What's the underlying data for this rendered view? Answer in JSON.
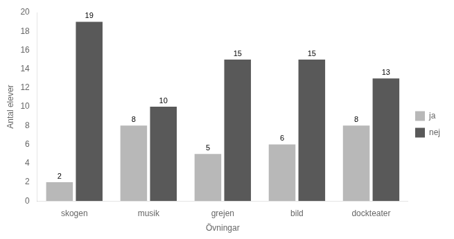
{
  "chart_data": {
    "type": "bar",
    "categories": [
      "skogen",
      "musik",
      "grejen",
      "bild",
      "dockteater"
    ],
    "series": [
      {
        "name": "ja",
        "color": "#b8b8b8",
        "values": [
          2,
          8,
          5,
          6,
          8
        ]
      },
      {
        "name": "nej",
        "color": "#595959",
        "values": [
          19,
          10,
          15,
          15,
          13
        ]
      }
    ],
    "xlabel": "Övningar",
    "ylabel": "Antal elever",
    "ylim": [
      0,
      20
    ],
    "yticks": [
      0,
      2,
      4,
      6,
      8,
      10,
      12,
      14,
      16,
      18,
      20
    ],
    "grid": false,
    "legend": "right",
    "data_labels": true
  }
}
